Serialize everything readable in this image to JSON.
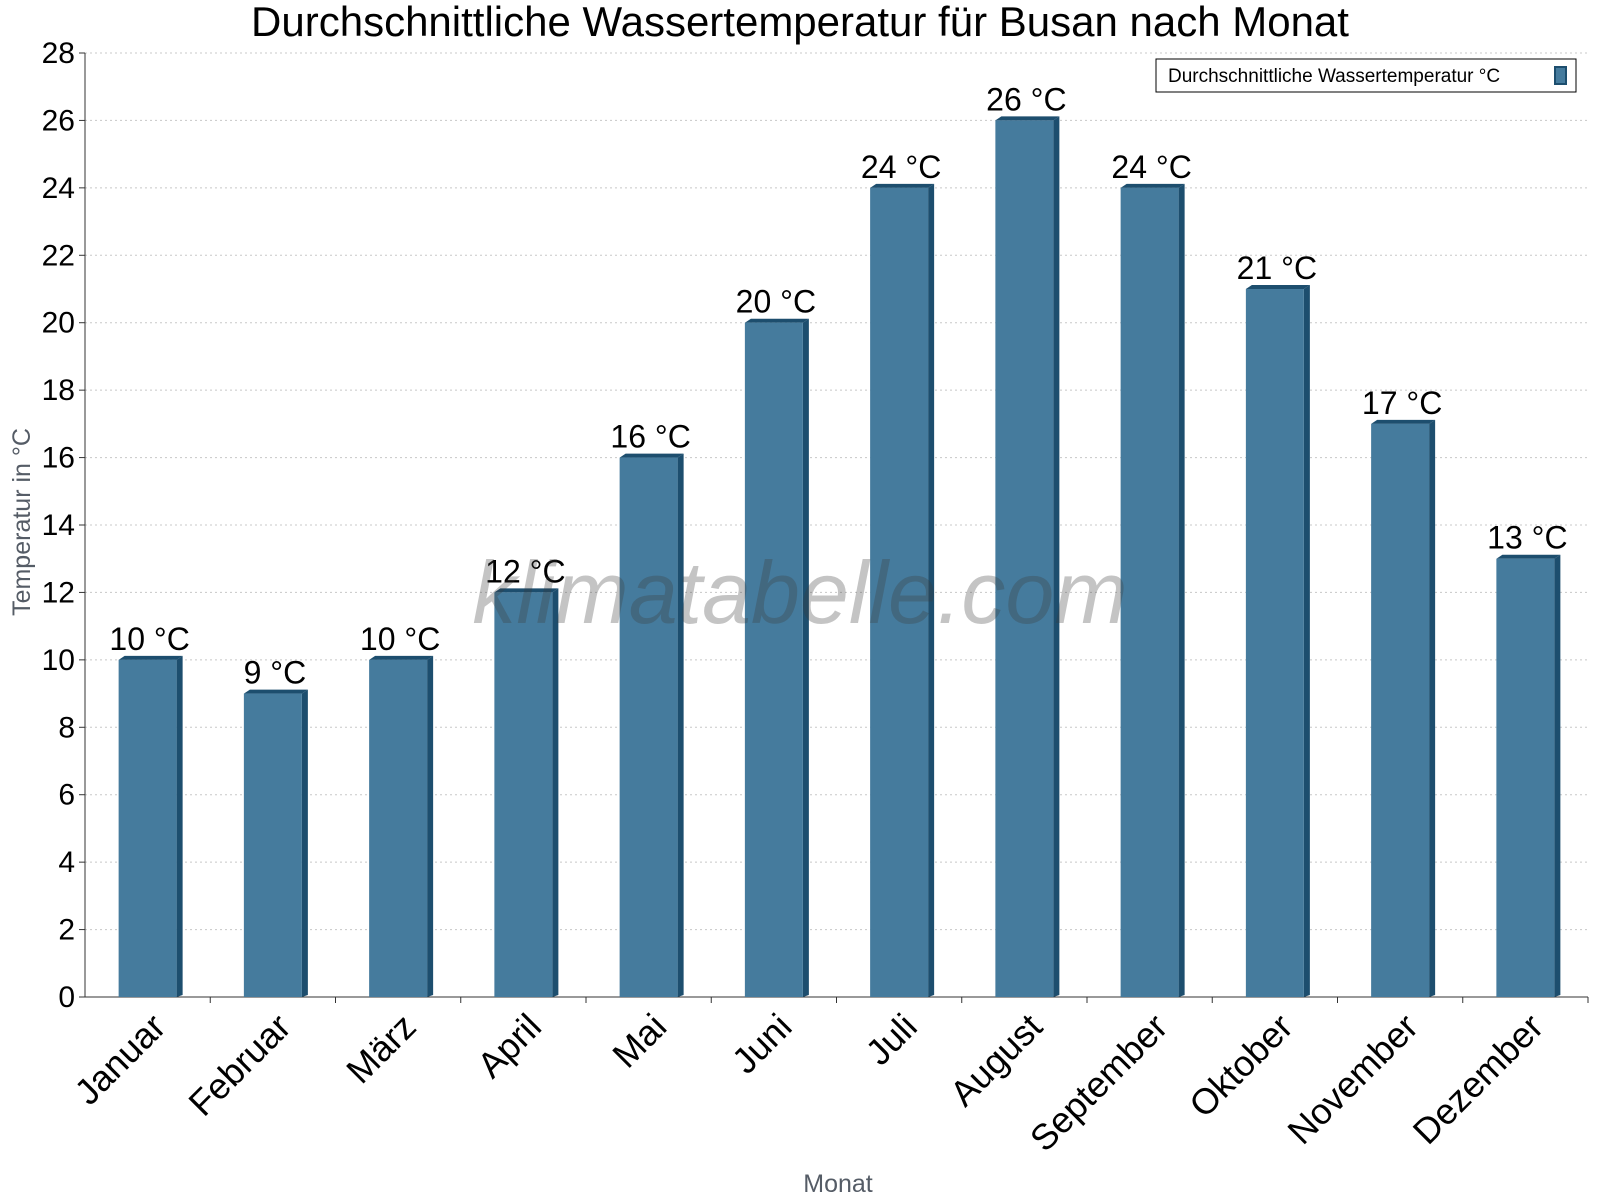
{
  "chart_data": {
    "type": "bar",
    "title": "Durchschnittliche Wassertemperatur für Busan nach Monat",
    "xlabel": "Monat",
    "ylabel": "Temperatur in °C",
    "categories": [
      "Januar",
      "Februar",
      "März",
      "April",
      "Mai",
      "Juni",
      "Juli",
      "August",
      "September",
      "Oktober",
      "November",
      "Dezember"
    ],
    "series": [
      {
        "name": "Durchschnittliche Wassertemperatur °C",
        "values": [
          10,
          9,
          10,
          12,
          16,
          20,
          24,
          26,
          24,
          21,
          17,
          13
        ],
        "labels": [
          "10 °C",
          "9 °C",
          "10 °C",
          "12 °C",
          "16 °C",
          "20 °C",
          "24 °C",
          "26 °C",
          "24 °C",
          "21 °C",
          "17 °C",
          "13 °C"
        ],
        "color": "#457b9d",
        "shade_color": "#1d4e6e"
      }
    ],
    "ylim": [
      0,
      28
    ],
    "yticks": [
      0,
      2,
      4,
      6,
      8,
      10,
      12,
      14,
      16,
      18,
      20,
      22,
      24,
      26,
      28
    ],
    "grid": true,
    "legend_position": "top-right"
  },
  "watermark": "klimatabelle.com"
}
